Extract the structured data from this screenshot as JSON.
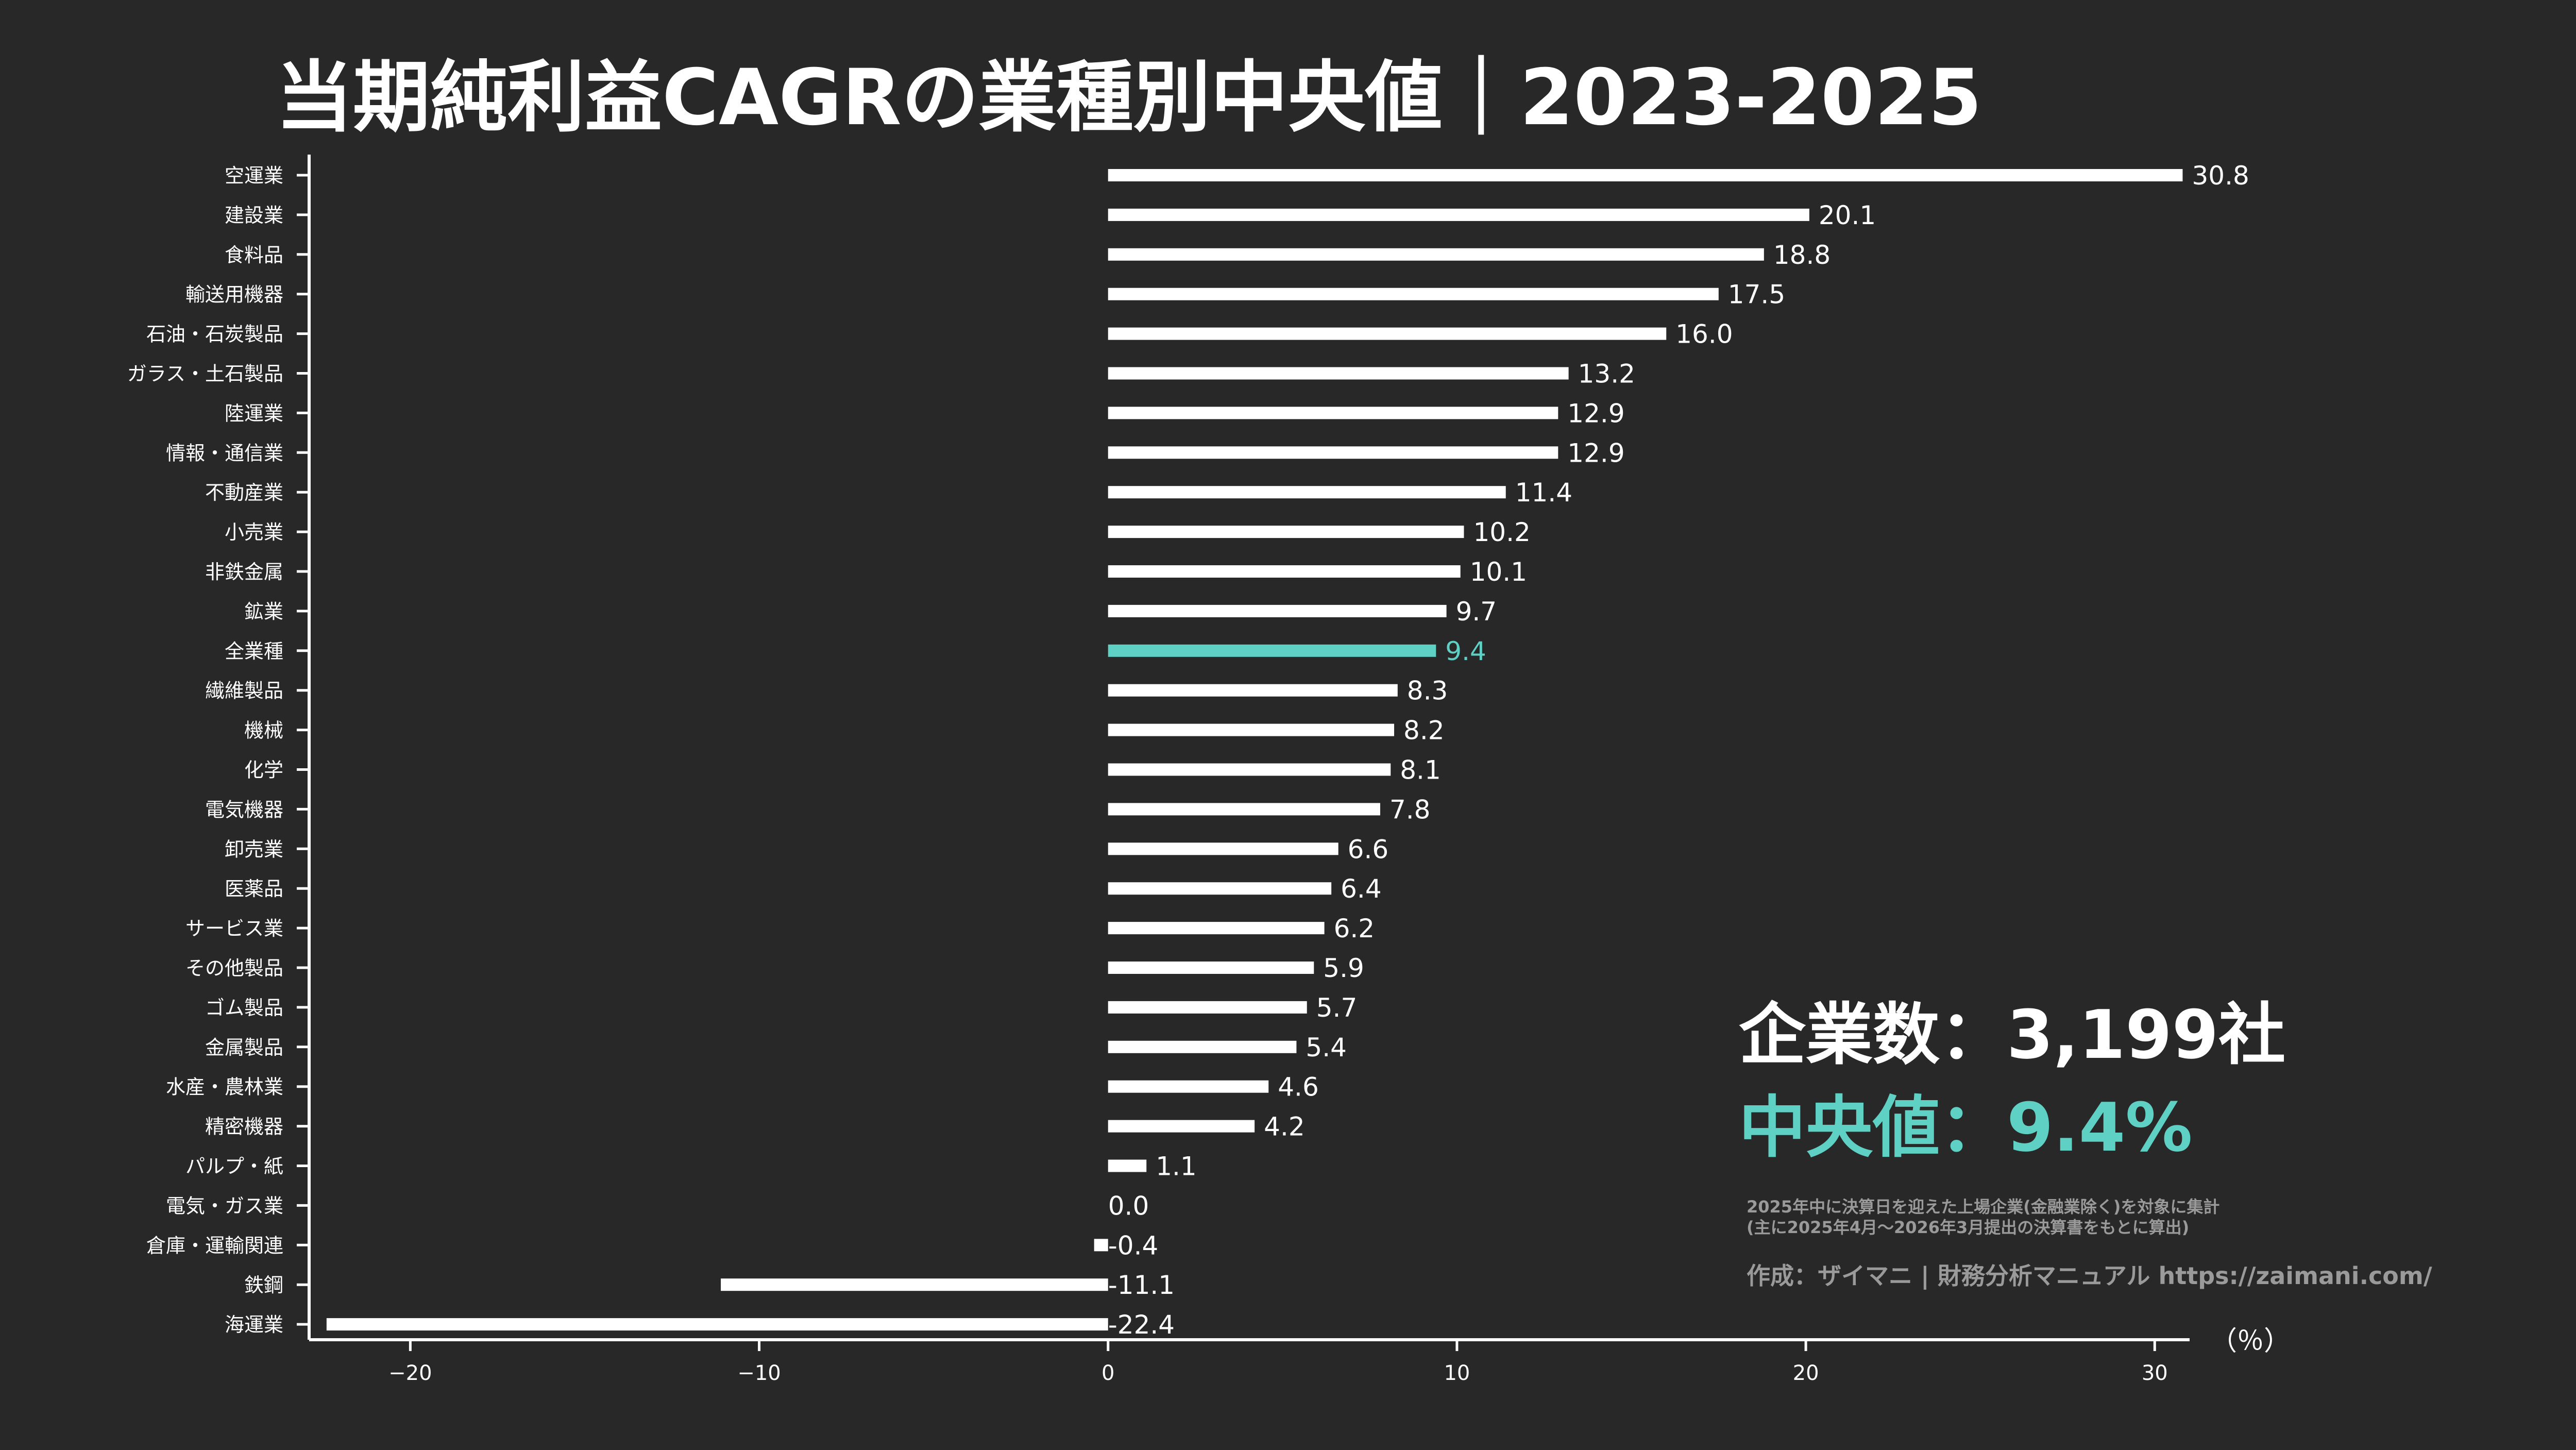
{
  "title": "当期純利益CAGRの業種別中央値｜2023-2025",
  "summary": {
    "count_text": "企業数：3,199社",
    "median_text": "中央値：9.4%"
  },
  "notes": {
    "line1": "2025年中に決算日を迎えた上場企業(金融業除く)を対象に集計",
    "line2": "(主に2025年4月〜2026年3月提出の決算書をもとに算出)",
    "credit": "作成：ザイマニ | 財務分析マニュアル https://zaimani.com/"
  },
  "colors": {
    "background": "#282828",
    "bar": "#ffffff",
    "highlight": "#5ed0c4",
    "axis": "#ffffff"
  },
  "chart_data": {
    "type": "bar",
    "orientation": "horizontal",
    "title": "当期純利益CAGRの業種別中央値｜2023-2025",
    "unit": "（％）",
    "xlim": [
      -22.9,
      31.0
    ],
    "xticks": [
      -20,
      -10,
      0,
      10,
      20,
      30
    ],
    "xtick_labels": [
      "−20",
      "−10",
      "0",
      "10",
      "20",
      "30"
    ],
    "highlight_category": "全業種",
    "categories": [
      "空運業",
      "建設業",
      "食料品",
      "輸送用機器",
      "石油・石炭製品",
      "ガラス・土石製品",
      "陸運業",
      "情報・通信業",
      "不動産業",
      "小売業",
      "非鉄金属",
      "鉱業",
      "全業種",
      "繊維製品",
      "機械",
      "化学",
      "電気機器",
      "卸売業",
      "医薬品",
      "サービス業",
      "その他製品",
      "ゴム製品",
      "金属製品",
      "水産・農林業",
      "精密機器",
      "パルプ・紙",
      "電気・ガス業",
      "倉庫・運輸関連",
      "鉄鋼",
      "海運業"
    ],
    "values": [
      30.8,
      20.1,
      18.8,
      17.5,
      16.0,
      13.2,
      12.9,
      12.9,
      11.4,
      10.2,
      10.1,
      9.7,
      9.4,
      8.3,
      8.2,
      8.1,
      7.8,
      6.6,
      6.4,
      6.2,
      5.9,
      5.7,
      5.4,
      4.6,
      4.2,
      1.1,
      0.0,
      -0.4,
      -11.1,
      -22.4
    ],
    "value_labels": [
      "30.8",
      "20.1",
      "18.8",
      "17.5",
      "16.0",
      "13.2",
      "12.9",
      "12.9",
      "11.4",
      "10.2",
      "10.1",
      "9.7",
      "9.4",
      "8.3",
      "8.2",
      "8.1",
      "7.8",
      "6.6",
      "6.4",
      "6.2",
      "5.9",
      "5.7",
      "5.4",
      "4.6",
      "4.2",
      "1.1",
      "0.0",
      "-0.4",
      "-11.1",
      "-22.4"
    ]
  }
}
